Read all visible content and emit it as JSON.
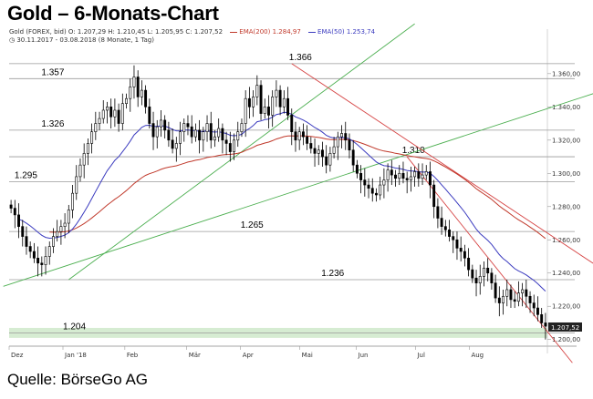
{
  "title": "Gold – 6-Monats-Chart",
  "legend": {
    "instrument": "Gold (FOREX, bid)",
    "ohlc": "O: 1.207,29  H: 1.210,45  L: 1.205,95  C: 1.207,52",
    "ema200": "EMA(200)",
    "ema200_value": "1.284,97",
    "ema50": "EMA(50)",
    "ema50_value": "1.253,74",
    "range": "30.11.2017 - 03.08.2018",
    "range_detail": "(8 Monate, 1 Tag)"
  },
  "source": "Quelle: BörseGo AG",
  "colors": {
    "ema200": "#c0392b",
    "ema50": "#3b3bbf",
    "trend_down": "#d64545",
    "trend_up": "#4caf50",
    "support_band": "#d6ecd2"
  },
  "chart_data": {
    "type": "candlestick",
    "title": "Gold – 6-Monats-Chart",
    "x_tick_labels": [
      "Dez",
      "Jan '18",
      "Feb",
      "Mär",
      "Apr",
      "Mai",
      "Jun",
      "Jul",
      "Aug"
    ],
    "y_tick_labels": [
      "1.200,00",
      "1.220,00",
      "1.240,00",
      "1.260,00",
      "1.280,00",
      "1.300,00",
      "1.320,00",
      "1.340,00",
      "1.360,00"
    ],
    "ylim": [
      1196,
      1378
    ],
    "last_price_label": "1.207,52",
    "levels": [
      {
        "label": "1.366",
        "value": 1366
      },
      {
        "label": "1.357",
        "value": 1357
      },
      {
        "label": "1.326",
        "value": 1326
      },
      {
        "label": "1.310",
        "value": 1310
      },
      {
        "label": "1.295",
        "value": 1295
      },
      {
        "label": "1.265",
        "value": 1265
      },
      {
        "label": "1.236",
        "value": 1236
      },
      {
        "label": "1.204",
        "value": 1204
      }
    ],
    "series": [
      {
        "name": "Gold (FOREX, bid)",
        "close": [
          1279,
          1275,
          1268,
          1262,
          1256,
          1253,
          1249,
          1246,
          1245,
          1250,
          1256,
          1262,
          1265,
          1268,
          1270,
          1278,
          1288,
          1298,
          1305,
          1312,
          1318,
          1325,
          1330,
          1333,
          1338,
          1340,
          1334,
          1338,
          1330,
          1342,
          1345,
          1352,
          1358,
          1346,
          1350,
          1340,
          1330,
          1322,
          1328,
          1332,
          1326,
          1320,
          1315,
          1318,
          1325,
          1330,
          1328,
          1322,
          1326,
          1320,
          1325,
          1330,
          1320,
          1322,
          1327,
          1320,
          1318,
          1313,
          1320,
          1325,
          1330,
          1345,
          1340,
          1346,
          1353,
          1336,
          1340,
          1335,
          1346,
          1350,
          1340,
          1345,
          1335,
          1325,
          1320,
          1325,
          1322,
          1318,
          1315,
          1312,
          1314,
          1310,
          1305,
          1312,
          1316,
          1322,
          1324,
          1320,
          1314,
          1305,
          1300,
          1296,
          1293,
          1291,
          1288,
          1287,
          1293,
          1296,
          1302,
          1299,
          1297,
          1300,
          1297,
          1296,
          1298,
          1301,
          1297,
          1299,
          1301,
          1293,
          1280,
          1273,
          1268,
          1266,
          1262,
          1260,
          1255,
          1253,
          1249,
          1242,
          1237,
          1234,
          1238,
          1243,
          1240,
          1234,
          1225,
          1222,
          1226,
          1230,
          1224,
          1223,
          1228,
          1230,
          1226,
          1222,
          1219,
          1215,
          1210,
          1208
        ]
      },
      {
        "name": "EMA(200)",
        "value": "1.284,97"
      },
      {
        "name": "EMA(50)",
        "value": "1.253,74"
      }
    ]
  }
}
